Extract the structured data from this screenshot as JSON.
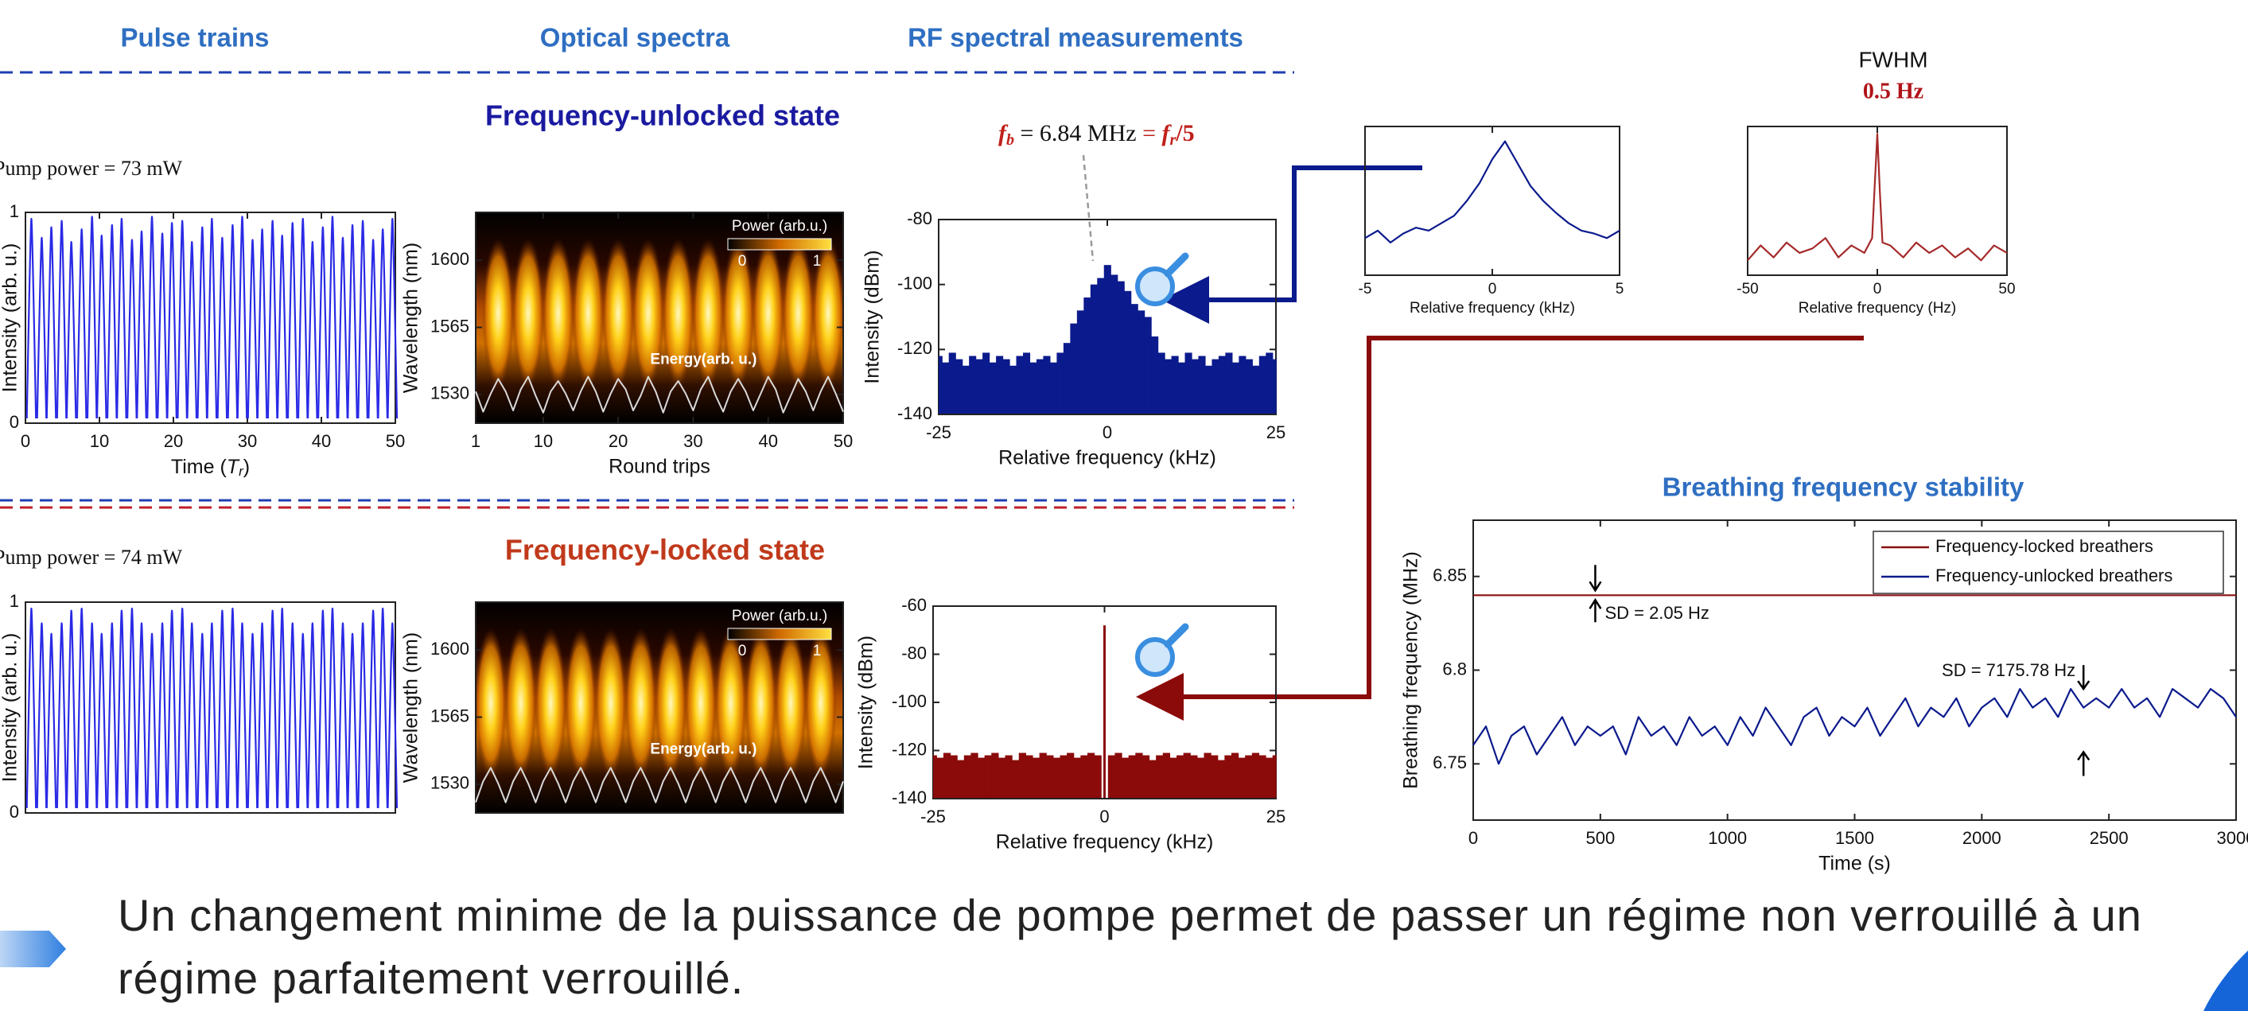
{
  "slide": {
    "headers": [
      "Pulse trains",
      "Optical spectra",
      "RF spectral measurements"
    ],
    "unlocked_state": "Frequency-unlocked state",
    "locked_state": "Frequency-locked state",
    "pump_unlocked": "Pump power = 73 mW",
    "pump_locked": "Pump power = 74 mW",
    "caption": [
      "Un changement minime de la puissance de pompe permet de passer un régime non verrouillé à un",
      "régime parfaitement verrouillé."
    ]
  },
  "chart_data": [
    {
      "type": "pulse",
      "xlim": [
        0,
        50
      ],
      "xticks": [
        0,
        10,
        20,
        30,
        40,
        50
      ],
      "ylim": [
        0,
        1
      ],
      "yticks": [
        0,
        1
      ],
      "xlabel_parts": [
        "Time (",
        "T",
        "r",
        ")"
      ],
      "ylabel": "Intensity (arb. u.)",
      "series": [
        {
          "color": "#2a2ae6",
          "x": [
            0.8,
            2.2,
            3.5,
            4.9,
            6.2,
            7.6,
            9.0,
            10.3,
            11.7,
            13.0,
            14.4,
            15.7,
            17.1,
            18.5,
            19.8,
            21.2,
            22.5,
            23.9,
            25.2,
            26.6,
            28.0,
            29.3,
            30.7,
            32.0,
            33.4,
            34.7,
            36.1,
            37.5,
            38.8,
            40.2,
            41.5,
            42.9,
            44.2,
            45.6,
            47.0,
            48.3,
            49.6
          ],
          "values": [
            0.97,
            0.88,
            0.93,
            0.96,
            0.86,
            0.92,
            0.98,
            0.89,
            0.94,
            0.97,
            0.87,
            0.91,
            0.98,
            0.9,
            0.95,
            0.96,
            0.86,
            0.93,
            0.97,
            0.88,
            0.94,
            0.98,
            0.87,
            0.92,
            0.96,
            0.89,
            0.95,
            0.97,
            0.86,
            0.93,
            0.98,
            0.88,
            0.94,
            0.96,
            0.87,
            0.92,
            0.97
          ]
        }
      ]
    },
    {
      "type": "heatmap",
      "xlim": [
        1,
        50
      ],
      "xticks": [
        1,
        10,
        20,
        30,
        40,
        50
      ],
      "ylim": [
        1515,
        1625
      ],
      "yticks": [
        1530,
        1565,
        1600
      ],
      "xlabel": "Round trips",
      "ylabel": "Wavelength (nm)",
      "colorbar_label": "Power (arb.u.)",
      "colorbar_ticks": [
        0,
        1
      ],
      "annotation": "Energy(arb. u.)",
      "series": [
        {
          "color": "#d9d9d9",
          "x": [
            1,
            2,
            3,
            4,
            5,
            6,
            7,
            8,
            9,
            10,
            11,
            12,
            13,
            14,
            15,
            16,
            17,
            18,
            19,
            20,
            21,
            22,
            23,
            24,
            25,
            26,
            27,
            28,
            29,
            30,
            31,
            32,
            33,
            34,
            35,
            36,
            37,
            38,
            39,
            40,
            41,
            42,
            43,
            44,
            45,
            46,
            47,
            48,
            49,
            50
          ],
          "values": [
            0.6,
            0.12,
            0.55,
            0.9,
            0.6,
            0.15,
            0.65,
            0.95,
            0.5,
            0.1,
            0.6,
            0.85,
            0.55,
            0.15,
            0.6,
            0.95,
            0.6,
            0.12,
            0.55,
            0.9,
            0.65,
            0.15,
            0.5,
            0.95,
            0.6,
            0.1,
            0.6,
            0.85,
            0.55,
            0.15,
            0.65,
            0.95,
            0.5,
            0.12,
            0.6,
            0.9,
            0.6,
            0.15,
            0.55,
            0.95,
            0.65,
            0.1,
            0.5,
            0.9,
            0.6,
            0.15,
            0.6,
            0.95,
            0.55,
            0.12
          ]
        }
      ]
    },
    {
      "type": "area",
      "xlim": [
        -25,
        25
      ],
      "xticks": [
        -25,
        0,
        25
      ],
      "ylim": [
        -140,
        -80
      ],
      "yticks": [
        -140,
        -120,
        -100,
        -80
      ],
      "xlabel": "Relative frequency (kHz)",
      "ylabel": "Intensity (dBm)",
      "annotation_parts": [
        "f",
        "b",
        " = 6.84 MHz ",
        "= ",
        "f",
        "r",
        "/5"
      ],
      "series": [
        {
          "color": "#0b1a8c",
          "x": [
            -25,
            -24,
            -23,
            -22,
            -21,
            -20,
            -19,
            -18,
            -17,
            -16,
            -15,
            -14,
            -13,
            -12,
            -11,
            -10,
            -9,
            -8,
            -7,
            -6,
            -5,
            -4,
            -3,
            -2,
            -1,
            0,
            1,
            2,
            3,
            4,
            5,
            6,
            7,
            8,
            9,
            10,
            11,
            12,
            13,
            14,
            15,
            16,
            17,
            18,
            19,
            20,
            21,
            22,
            23,
            24,
            25
          ],
          "values": [
            -122,
            -124,
            -121,
            -123,
            -125,
            -122,
            -123,
            -121,
            -124,
            -122,
            -123,
            -125,
            -122,
            -121,
            -124,
            -123,
            -122,
            -124,
            -121,
            -118,
            -112,
            -108,
            -104,
            -100,
            -98,
            -94,
            -97,
            -99,
            -102,
            -106,
            -108,
            -110,
            -116,
            -121,
            -123,
            -122,
            -124,
            -121,
            -123,
            -122,
            -125,
            -123,
            -122,
            -121,
            -124,
            -122,
            -123,
            -125,
            -122,
            -121,
            -123
          ]
        }
      ]
    },
    {
      "type": "pulse",
      "xlim": [
        0,
        50
      ],
      "ylim": [
        0,
        1
      ],
      "yticks": [
        0,
        1
      ],
      "ylabel": "Intensity (arb. u.)",
      "series": [
        {
          "color": "#2a2ae6",
          "x": [
            0.8,
            2.2,
            3.5,
            4.9,
            6.2,
            7.6,
            9.0,
            10.3,
            11.7,
            13.0,
            14.4,
            15.7,
            17.1,
            18.5,
            19.8,
            21.2,
            22.5,
            23.9,
            25.2,
            26.6,
            28.0,
            29.3,
            30.7,
            32.0,
            33.4,
            34.7,
            36.1,
            37.5,
            38.8,
            40.2,
            41.5,
            42.9,
            44.2,
            45.6,
            47.0,
            48.3,
            49.6
          ],
          "values": [
            0.97,
            0.9,
            0.85,
            0.9,
            0.96,
            0.97,
            0.9,
            0.85,
            0.9,
            0.96,
            0.97,
            0.9,
            0.85,
            0.9,
            0.96,
            0.97,
            0.9,
            0.85,
            0.9,
            0.96,
            0.97,
            0.9,
            0.85,
            0.9,
            0.96,
            0.97,
            0.9,
            0.85,
            0.9,
            0.96,
            0.97,
            0.9,
            0.85,
            0.9,
            0.96,
            0.97,
            0.9
          ]
        }
      ]
    },
    {
      "type": "heatmap",
      "xlim": [
        1,
        50
      ],
      "ylim": [
        1515,
        1625
      ],
      "yticks": [
        1530,
        1565,
        1600
      ],
      "ylabel": "Wavelength (nm)",
      "colorbar_label": "Power (arb.u.)",
      "colorbar_ticks": [
        0,
        1
      ],
      "annotation": "Energy(arb. u.)",
      "series": [
        {
          "color": "#d9d9d9",
          "x": [
            1,
            2,
            3,
            4,
            5,
            6,
            7,
            8,
            9,
            10,
            11,
            12,
            13,
            14,
            15,
            16,
            17,
            18,
            19,
            20,
            21,
            22,
            23,
            24,
            25,
            26,
            27,
            28,
            29,
            30,
            31,
            32,
            33,
            34,
            35,
            36,
            37,
            38,
            39,
            40,
            41,
            42,
            43,
            44,
            45,
            46,
            47,
            48,
            49,
            50
          ],
          "values": [
            0.1,
            0.6,
            0.92,
            0.55,
            0.1,
            0.6,
            0.92,
            0.55,
            0.1,
            0.6,
            0.92,
            0.55,
            0.1,
            0.6,
            0.92,
            0.55,
            0.1,
            0.6,
            0.92,
            0.55,
            0.1,
            0.6,
            0.92,
            0.55,
            0.1,
            0.6,
            0.92,
            0.55,
            0.1,
            0.6,
            0.92,
            0.55,
            0.1,
            0.6,
            0.92,
            0.55,
            0.1,
            0.6,
            0.92,
            0.55,
            0.1,
            0.6,
            0.92,
            0.55,
            0.1,
            0.6,
            0.92,
            0.55,
            0.1,
            0.6
          ]
        }
      ]
    },
    {
      "type": "area",
      "xlim": [
        -25,
        25
      ],
      "xticks": [
        -25,
        0,
        25
      ],
      "ylim": [
        -140,
        -60
      ],
      "yticks": [
        -140,
        -120,
        -100,
        -80,
        -60
      ],
      "xlabel": "Relative frequency (kHz)",
      "ylabel": "Intensity (dBm)",
      "series": [
        {
          "color": "#8b0a0a",
          "x": [
            -25,
            -24,
            -23,
            -22,
            -21,
            -20,
            -19,
            -18,
            -17,
            -16,
            -15,
            -14,
            -13,
            -12,
            -11,
            -10,
            -9,
            -8,
            -7,
            -6,
            -5,
            -4,
            -3,
            -2,
            -1,
            0,
            1,
            2,
            3,
            4,
            5,
            6,
            7,
            8,
            9,
            10,
            11,
            12,
            13,
            14,
            15,
            16,
            17,
            18,
            19,
            20,
            21,
            22,
            23,
            24,
            25
          ],
          "values": [
            -122,
            -123,
            -121,
            -122,
            -124,
            -122,
            -121,
            -123,
            -122,
            -121,
            -123,
            -122,
            -124,
            -121,
            -122,
            -123,
            -121,
            -122,
            -123,
            -122,
            -121,
            -123,
            -122,
            -121,
            -122,
            -68,
            -122,
            -121,
            -123,
            -122,
            -121,
            -122,
            -124,
            -122,
            -121,
            -123,
            -122,
            -121,
            -122,
            -123,
            -121,
            -122,
            -124,
            -122,
            -121,
            -123,
            -122,
            -121,
            -122,
            -123,
            -122
          ]
        }
      ]
    },
    {
      "type": "line",
      "xlim": [
        -5,
        5
      ],
      "xticks": [
        -5,
        0,
        5
      ],
      "ylim": [
        0,
        1
      ],
      "xlabel": "Relative frequency (kHz)",
      "series": [
        {
          "color": "#0b1a8c",
          "x": [
            -5,
            -4.5,
            -4,
            -3.5,
            -3,
            -2.5,
            -2,
            -1.5,
            -1,
            -0.5,
            0,
            0.5,
            1,
            1.5,
            2,
            2.5,
            3,
            3.5,
            4,
            4.5,
            5
          ],
          "values": [
            0.25,
            0.3,
            0.22,
            0.28,
            0.32,
            0.3,
            0.35,
            0.4,
            0.5,
            0.62,
            0.78,
            0.9,
            0.75,
            0.6,
            0.5,
            0.42,
            0.35,
            0.3,
            0.28,
            0.25,
            0.3
          ]
        }
      ]
    },
    {
      "type": "line",
      "title": "FWHM",
      "subtitle": "0.5 Hz",
      "xlim": [
        -50,
        50
      ],
      "xticks": [
        -50,
        0,
        50
      ],
      "ylim": [
        0,
        1
      ],
      "xlabel": "Relative frequency (Hz)",
      "series": [
        {
          "color": "#a52a2a",
          "x": [
            -50,
            -45,
            -40,
            -35,
            -30,
            -25,
            -20,
            -15,
            -10,
            -5,
            -2,
            -1,
            0,
            1,
            2,
            5,
            10,
            15,
            20,
            25,
            30,
            35,
            40,
            45,
            50
          ],
          "values": [
            0.1,
            0.2,
            0.12,
            0.22,
            0.15,
            0.18,
            0.25,
            0.12,
            0.2,
            0.15,
            0.25,
            0.6,
            0.95,
            0.55,
            0.22,
            0.2,
            0.12,
            0.22,
            0.15,
            0.2,
            0.12,
            0.18,
            0.1,
            0.2,
            0.15
          ]
        }
      ]
    },
    {
      "type": "line",
      "title": "Breathing frequency stability",
      "xlim": [
        0,
        3000
      ],
      "xticks": [
        0,
        500,
        1000,
        1500,
        2000,
        2500,
        3000
      ],
      "ylim": [
        6.72,
        6.88
      ],
      "yticks": [
        6.75,
        6.8,
        6.85
      ],
      "xlabel": "Time (s)",
      "ylabel": "Breathing frequency (MHz)",
      "legend": "upper right",
      "annotations": [
        "SD = 2.05 Hz",
        "SD = 7175.78 Hz"
      ],
      "series": [
        {
          "name": "Frequency-locked breathers",
          "color": "#8b1010",
          "x": [
            0,
            3000
          ],
          "values": [
            6.84,
            6.84
          ]
        },
        {
          "name": "Frequency-unlocked breathers",
          "color": "#0b1a8c",
          "x": [
            0,
            50,
            100,
            150,
            200,
            250,
            300,
            350,
            400,
            450,
            500,
            550,
            600,
            650,
            700,
            750,
            800,
            850,
            900,
            950,
            1000,
            1050,
            1100,
            1150,
            1200,
            1250,
            1300,
            1350,
            1400,
            1450,
            1500,
            1550,
            1600,
            1650,
            1700,
            1750,
            1800,
            1850,
            1900,
            1950,
            2000,
            2050,
            2100,
            2150,
            2200,
            2250,
            2300,
            2350,
            2400,
            2450,
            2500,
            2550,
            2600,
            2650,
            2700,
            2750,
            2800,
            2850,
            2900,
            2950,
            3000
          ],
          "values": [
            6.76,
            6.77,
            6.75,
            6.765,
            6.77,
            6.755,
            6.765,
            6.775,
            6.76,
            6.77,
            6.765,
            6.77,
            6.755,
            6.775,
            6.765,
            6.77,
            6.76,
            6.775,
            6.765,
            6.77,
            6.76,
            6.775,
            6.765,
            6.78,
            6.77,
            6.76,
            6.775,
            6.78,
            6.765,
            6.775,
            6.77,
            6.78,
            6.765,
            6.775,
            6.785,
            6.77,
            6.78,
            6.775,
            6.785,
            6.77,
            6.78,
            6.785,
            6.775,
            6.79,
            6.78,
            6.785,
            6.775,
            6.79,
            6.78,
            6.785,
            6.78,
            6.79,
            6.78,
            6.785,
            6.775,
            6.79,
            6.785,
            6.78,
            6.79,
            6.785,
            6.775
          ]
        }
      ]
    }
  ]
}
